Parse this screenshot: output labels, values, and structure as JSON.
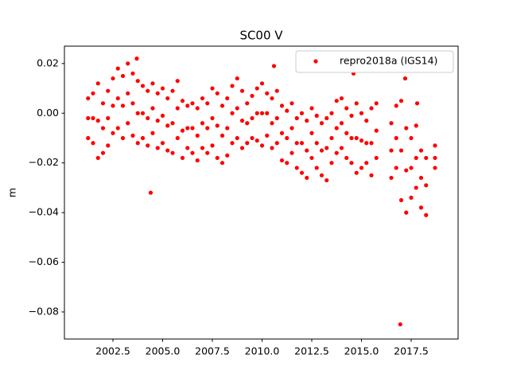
{
  "chart_data": {
    "type": "scatter",
    "title": "SC00 V",
    "ylabel": "m",
    "xlim": [
      2000.06,
      2019.86
    ],
    "xticks": [
      2002.5,
      {
        "value": 2005.0,
        "label": "2005.0"
      },
      2007.5,
      {
        "value": 2010.0,
        "label": "2010.0"
      },
      2012.5,
      {
        "value": 2015.0,
        "label": "2015.0"
      },
      2017.5
    ],
    "ylim": [
      -0.0909,
      0.027
    ],
    "yticks": [
      {
        "value": -0.08,
        "label": "−0.08"
      },
      {
        "value": -0.06,
        "label": "−0.06"
      },
      {
        "value": -0.04,
        "label": "−0.04"
      },
      {
        "value": -0.02,
        "label": "−0.02"
      },
      {
        "value": 0,
        "label": "0.00"
      },
      0.02
    ],
    "legend": "upper right",
    "grid": false,
    "series": [
      {
        "name": "repro2018a (IGS14)",
        "color": "#ff0000",
        "x": [
          2001.25,
          2001.25,
          2001.25,
          2001.5,
          2001.5,
          2001.5,
          2001.75,
          2001.75,
          2001.75,
          2002.0,
          2002.0,
          2002.0,
          2002.25,
          2002.25,
          2002.25,
          2002.5,
          2002.5,
          2002.5,
          2002.75,
          2002.75,
          2002.75,
          2003.0,
          2003.0,
          2003.0,
          2003.25,
          2003.25,
          2003.25,
          2003.5,
          2003.5,
          2003.5,
          2003.75,
          2003.75,
          2003.75,
          2004.0,
          2004.0,
          2004.0,
          2004.25,
          2004.25,
          2004.25,
          2004.5,
          2004.5,
          2004.5,
          2004.75,
          2004.75,
          2004.75,
          2005.0,
          2005.0,
          2005.0,
          2005.25,
          2005.25,
          2005.25,
          2005.5,
          2005.5,
          2005.5,
          2005.75,
          2005.75,
          2005.75,
          2006.0,
          2006.0,
          2006.0,
          2006.25,
          2006.25,
          2006.25,
          2006.5,
          2006.5,
          2006.5,
          2006.75,
          2006.75,
          2006.75,
          2007.0,
          2007.0,
          2007.0,
          2007.25,
          2007.25,
          2007.25,
          2007.5,
          2007.5,
          2007.5,
          2007.75,
          2007.75,
          2007.75,
          2008.0,
          2008.0,
          2008.0,
          2008.25,
          2008.25,
          2008.25,
          2008.5,
          2008.5,
          2008.5,
          2008.75,
          2008.75,
          2008.75,
          2009.0,
          2009.0,
          2009.0,
          2009.25,
          2009.25,
          2009.25,
          2009.5,
          2009.5,
          2009.5,
          2009.75,
          2009.75,
          2009.75,
          2010.0,
          2010.0,
          2010.0,
          2010.25,
          2010.25,
          2010.25,
          2010.5,
          2010.5,
          2010.5,
          2010.75,
          2010.75,
          2010.75,
          2011.0,
          2011.0,
          2011.0,
          2011.25,
          2011.25,
          2011.25,
          2011.5,
          2011.5,
          2011.5,
          2011.75,
          2011.75,
          2011.75,
          2012.0,
          2012.0,
          2012.0,
          2012.25,
          2012.25,
          2012.25,
          2012.5,
          2012.5,
          2012.5,
          2012.75,
          2012.75,
          2012.75,
          2013.0,
          2013.0,
          2013.0,
          2013.25,
          2013.25,
          2013.25,
          2013.5,
          2013.5,
          2013.5,
          2013.75,
          2013.75,
          2013.75,
          2014.0,
          2014.0,
          2014.0,
          2014.25,
          2014.25,
          2014.25,
          2014.5,
          2014.5,
          2014.5,
          2014.75,
          2014.75,
          2014.75,
          2015.0,
          2015.0,
          2015.0,
          2015.25,
          2015.25,
          2015.25,
          2015.5,
          2015.5,
          2015.5,
          2015.75,
          2015.75,
          2015.75,
          2016.5,
          2016.5,
          2016.5,
          2016.75,
          2016.75,
          2016.75,
          2017.0,
          2017.0,
          2017.0,
          2017.25,
          2017.25,
          2017.25,
          2017.5,
          2017.5,
          2017.5,
          2017.75,
          2017.75,
          2017.75,
          2018.0,
          2018.0,
          2018.0,
          2018.25,
          2018.25,
          2018.25,
          2018.7,
          2018.7,
          2018.7,
          2004.4,
          2016.95,
          2014.6,
          2010.6,
          2017.2,
          2003.7,
          2017.8
        ],
        "values": [
          0.006,
          -0.002,
          -0.01,
          0.008,
          -0.002,
          -0.012,
          0.012,
          -0.003,
          -0.018,
          0.004,
          -0.006,
          -0.016,
          0.009,
          -0.002,
          -0.013,
          0.014,
          0.003,
          -0.008,
          0.018,
          0.006,
          -0.006,
          0.015,
          0.003,
          -0.01,
          0.02,
          0.008,
          -0.004,
          0.016,
          0.004,
          -0.009,
          0.013,
          0.0,
          -0.012,
          0.011,
          0.0,
          -0.01,
          0.009,
          -0.002,
          -0.013,
          0.012,
          0.002,
          -0.008,
          0.008,
          -0.003,
          -0.014,
          0.01,
          -0.001,
          -0.012,
          0.006,
          -0.005,
          -0.015,
          0.009,
          -0.004,
          -0.016,
          0.013,
          0.002,
          -0.01,
          0.005,
          -0.007,
          -0.018,
          0.003,
          -0.006,
          -0.014,
          0.004,
          -0.006,
          -0.016,
          0.002,
          -0.009,
          -0.019,
          0.006,
          -0.004,
          -0.014,
          0.004,
          -0.006,
          -0.016,
          0.01,
          -0.002,
          -0.013,
          0.008,
          -0.005,
          -0.018,
          0.003,
          -0.009,
          -0.02,
          0.006,
          -0.006,
          -0.017,
          0.011,
          0.0,
          -0.012,
          0.014,
          0.002,
          -0.01,
          0.009,
          -0.003,
          -0.014,
          0.004,
          -0.004,
          -0.012,
          0.007,
          -0.002,
          -0.01,
          0.01,
          0.0,
          -0.011,
          0.012,
          0.0,
          -0.013,
          0.008,
          0.0,
          -0.009,
          0.006,
          -0.004,
          -0.014,
          0.009,
          -0.002,
          -0.012,
          0.003,
          -0.008,
          -0.019,
          0.001,
          -0.01,
          -0.02,
          0.004,
          -0.006,
          -0.016,
          -0.002,
          -0.012,
          -0.022,
          0.0,
          -0.012,
          -0.024,
          -0.003,
          -0.015,
          -0.026,
          0.002,
          -0.008,
          -0.018,
          -0.001,
          -0.012,
          -0.022,
          -0.004,
          -0.015,
          -0.025,
          -0.002,
          -0.014,
          -0.027,
          0.0,
          -0.01,
          -0.02,
          0.005,
          -0.006,
          -0.016,
          0.006,
          -0.004,
          -0.014,
          0.002,
          -0.008,
          -0.018,
          -0.001,
          -0.01,
          -0.02,
          0.004,
          -0.01,
          -0.024,
          0.0,
          -0.011,
          -0.022,
          -0.003,
          -0.012,
          -0.02,
          0.002,
          -0.012,
          -0.025,
          0.004,
          -0.007,
          -0.018,
          -0.004,
          -0.015,
          -0.026,
          0.003,
          -0.01,
          -0.022,
          0.005,
          -0.015,
          -0.035,
          -0.006,
          -0.023,
          -0.04,
          -0.01,
          -0.022,
          -0.034,
          -0.005,
          -0.018,
          -0.03,
          -0.015,
          -0.026,
          -0.038,
          -0.018,
          -0.029,
          -0.041,
          -0.013,
          -0.018,
          -0.022,
          -0.032,
          -0.085,
          0.016,
          0.019,
          0.014,
          0.022,
          0.004
        ]
      }
    ]
  }
}
